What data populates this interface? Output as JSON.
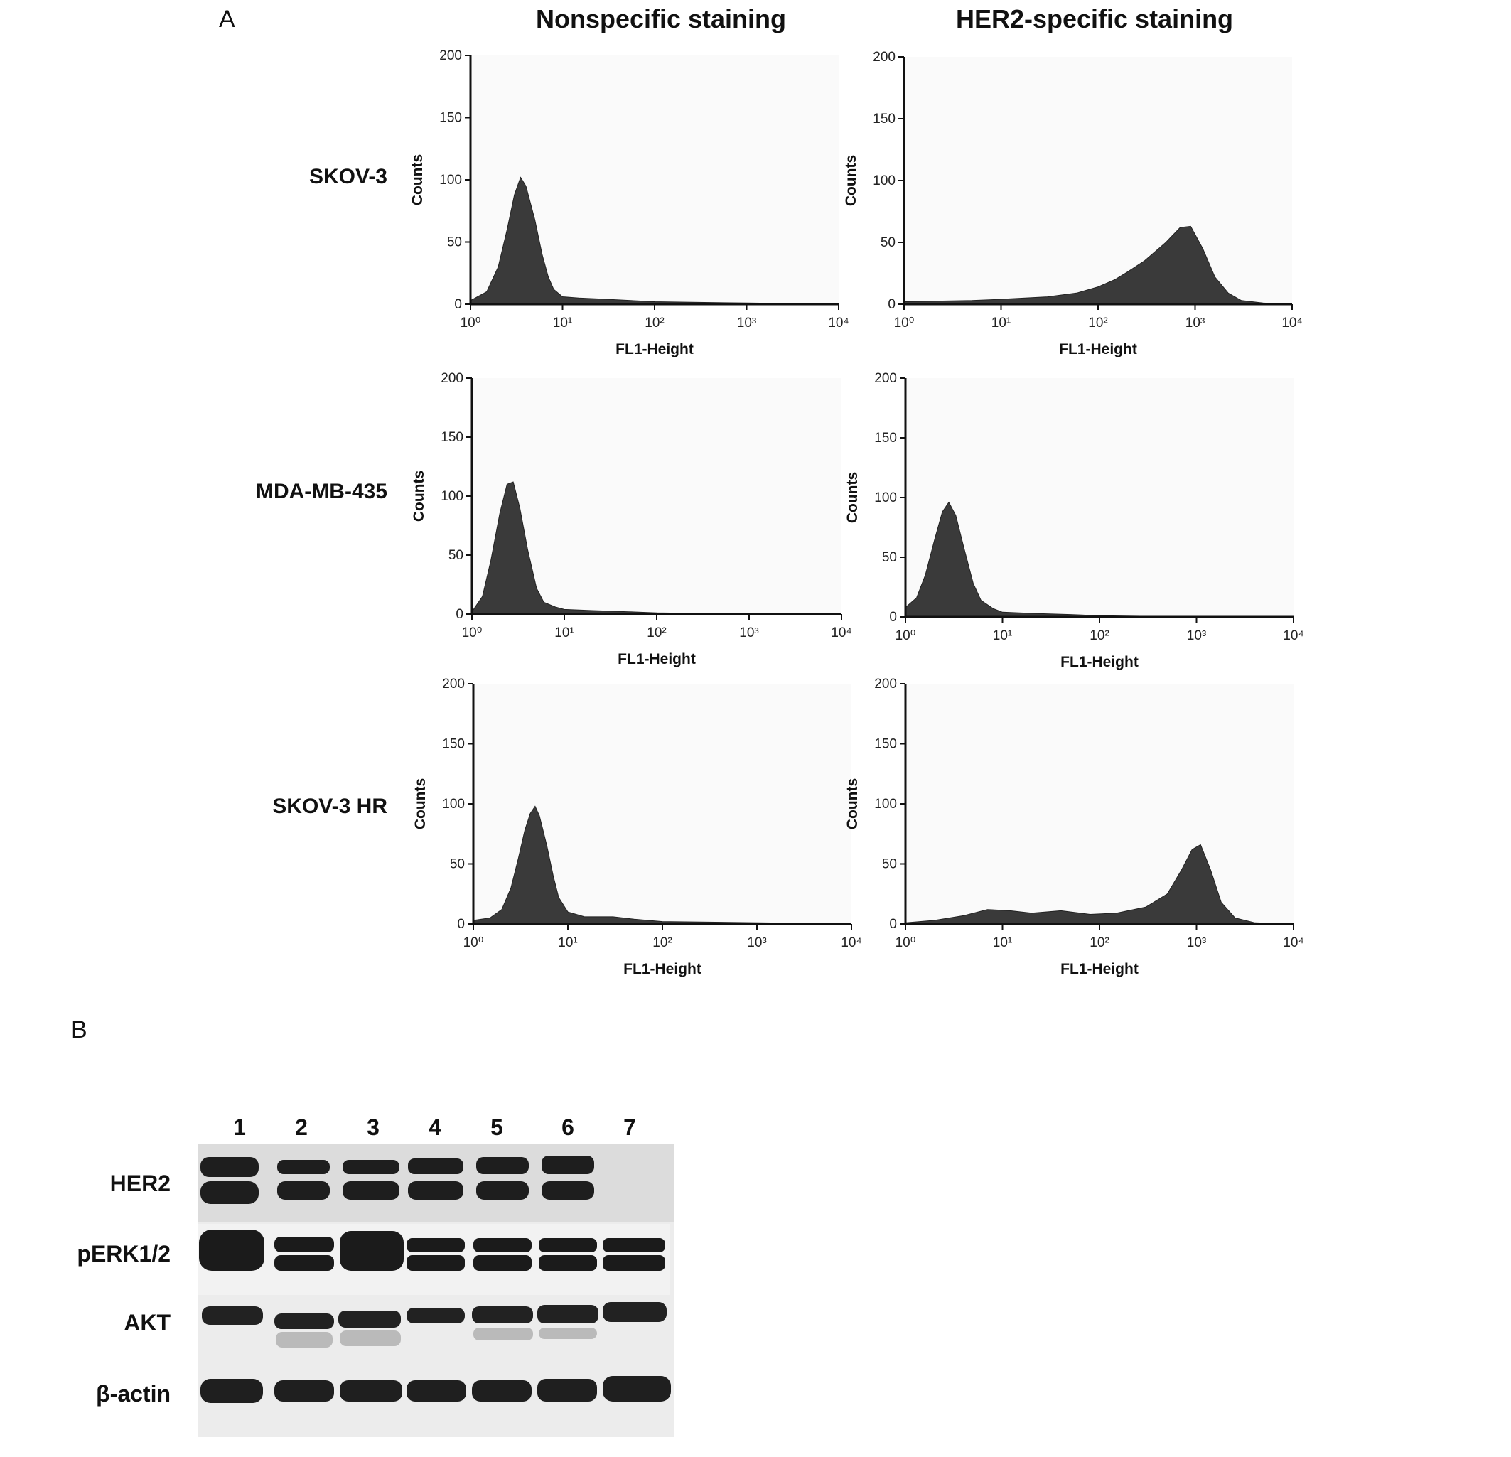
{
  "panel_a": {
    "letter": "A",
    "columns": [
      "Nonspecific staining",
      "HER2-specific staining"
    ],
    "rows": [
      "SKOV-3",
      "MDA-MB-435",
      "SKOV-3 HR"
    ]
  },
  "panel_b": {
    "letter": "B",
    "lanes": [
      "1",
      "2",
      "3",
      "4",
      "5",
      "6",
      "7"
    ],
    "rows": [
      "HER2",
      "pERK1/2",
      "AKT",
      "β-actin"
    ]
  },
  "colors": {
    "histogram_fill": "#3a3a3a",
    "plot_background": "#fafafa",
    "blot_background": "#e2e2e2",
    "band": "#1e1e1e"
  },
  "chart_data": [
    {
      "type": "area",
      "title": "",
      "xlabel": "FL1-Height",
      "ylabel": "Counts",
      "xscale": "log",
      "xlim": [
        1,
        10000
      ],
      "ylim": [
        0,
        200
      ],
      "x_ticks": [
        "10⁰",
        "10¹",
        "10²",
        "10³",
        "10⁴"
      ],
      "y_ticks": [
        "0",
        "50",
        "100",
        "150",
        "200"
      ],
      "x": [
        1.0,
        1.5,
        2.0,
        2.5,
        3.0,
        3.5,
        4.0,
        5.0,
        6.0,
        7.0,
        8.0,
        10,
        15,
        30,
        100,
        1000,
        10000
      ],
      "y": [
        3,
        10,
        30,
        60,
        88,
        102,
        95,
        68,
        40,
        22,
        12,
        6,
        5,
        4,
        2,
        1,
        0
      ]
    },
    {
      "type": "area",
      "title": "",
      "xlabel": "FL1-Height",
      "ylabel": "Counts",
      "xscale": "log",
      "xlim": [
        1,
        10000
      ],
      "ylim": [
        0,
        200
      ],
      "x_ticks": [
        "10⁰",
        "10¹",
        "10²",
        "10³",
        "10⁴"
      ],
      "y_ticks": [
        "0",
        "50",
        "100",
        "150",
        "200"
      ],
      "x": [
        1,
        5,
        10,
        30,
        60,
        100,
        150,
        200,
        300,
        500,
        700,
        900,
        1200,
        1600,
        2200,
        3000,
        5000,
        10000
      ],
      "y": [
        2,
        3,
        4,
        6,
        9,
        14,
        20,
        26,
        35,
        50,
        62,
        63,
        45,
        22,
        9,
        3,
        1,
        0
      ]
    },
    {
      "type": "area",
      "title": "",
      "xlabel": "FL1-Height",
      "ylabel": "Counts",
      "xscale": "log",
      "xlim": [
        1,
        10000
      ],
      "ylim": [
        0,
        200
      ],
      "x_ticks": [
        "10⁰",
        "10¹",
        "10²",
        "10³",
        "10⁴"
      ],
      "y_ticks": [
        "0",
        "50",
        "100",
        "150",
        "200"
      ],
      "x": [
        1.0,
        1.3,
        1.6,
        2.0,
        2.4,
        2.8,
        3.3,
        4.0,
        5.0,
        6.0,
        8.0,
        10,
        20,
        50,
        100,
        1000,
        10000
      ],
      "y": [
        2,
        15,
        45,
        85,
        110,
        112,
        90,
        55,
        22,
        10,
        6,
        4,
        3,
        2,
        1,
        0,
        0
      ]
    },
    {
      "type": "area",
      "title": "",
      "xlabel": "FL1-Height",
      "ylabel": "Counts",
      "xscale": "log",
      "xlim": [
        1,
        10000
      ],
      "ylim": [
        0,
        200
      ],
      "x_ticks": [
        "10⁰",
        "10¹",
        "10²",
        "10³",
        "10⁴"
      ],
      "y_ticks": [
        "0",
        "50",
        "100",
        "150",
        "200"
      ],
      "x": [
        1.0,
        1.3,
        1.6,
        2.0,
        2.4,
        2.8,
        3.3,
        4.0,
        5.0,
        6.0,
        8.0,
        10,
        20,
        50,
        100,
        1000,
        10000
      ],
      "y": [
        8,
        16,
        35,
        65,
        88,
        96,
        85,
        58,
        28,
        14,
        7,
        4,
        3,
        2,
        1,
        0,
        0
      ]
    },
    {
      "type": "area",
      "title": "",
      "xlabel": "FL1-Height",
      "ylabel": "Counts",
      "xscale": "log",
      "xlim": [
        1,
        10000
      ],
      "ylim": [
        0,
        200
      ],
      "x_ticks": [
        "10⁰",
        "10¹",
        "10²",
        "10³",
        "10⁴"
      ],
      "y_ticks": [
        "0",
        "50",
        "100",
        "150",
        "200"
      ],
      "x": [
        1.0,
        1.5,
        2.0,
        2.5,
        3.0,
        3.5,
        4.0,
        4.5,
        5.0,
        6.0,
        7.0,
        8.0,
        10,
        15,
        30,
        50,
        100,
        1000,
        10000
      ],
      "y": [
        3,
        5,
        12,
        30,
        55,
        78,
        92,
        98,
        90,
        65,
        40,
        22,
        10,
        6,
        6,
        4,
        2,
        1,
        0
      ]
    },
    {
      "type": "area",
      "title": "",
      "xlabel": "FL1-Height",
      "ylabel": "Counts",
      "xscale": "log",
      "xlim": [
        1,
        10000
      ],
      "ylim": [
        0,
        200
      ],
      "x_ticks": [
        "10⁰",
        "10¹",
        "10²",
        "10³",
        "10⁴"
      ],
      "y_ticks": [
        "0",
        "50",
        "100",
        "150",
        "200"
      ],
      "x": [
        1,
        2,
        4,
        7,
        12,
        20,
        40,
        80,
        150,
        300,
        500,
        700,
        900,
        1100,
        1400,
        1800,
        2500,
        4000,
        10000
      ],
      "y": [
        1,
        3,
        7,
        12,
        11,
        9,
        11,
        8,
        9,
        14,
        25,
        45,
        62,
        66,
        45,
        18,
        5,
        1,
        0
      ]
    }
  ]
}
